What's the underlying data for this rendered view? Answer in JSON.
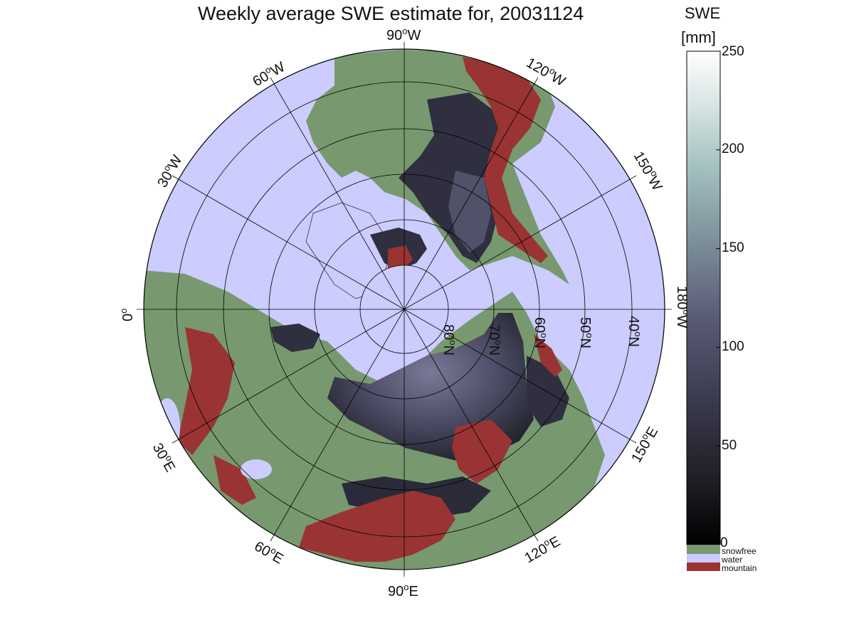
{
  "title": "Weekly average SWE estimate for, 20031124",
  "colorbar": {
    "title_line1": "SWE",
    "title_line2": "[mm]",
    "ticks": [
      "250",
      "200",
      "150",
      "100",
      "50",
      "0"
    ],
    "range": [
      0,
      250
    ]
  },
  "legend": [
    {
      "label": "snowfree",
      "color": "#78996f"
    },
    {
      "label": "water",
      "color": "#ccccff"
    },
    {
      "label": "mountain",
      "color": "#9a3333"
    }
  ],
  "longitude_labels": {
    "w90": "90",
    "w60": "60",
    "w120": "120",
    "w30": "30",
    "w150": "150",
    "zero": "0",
    "w180": "180",
    "e30": "30",
    "e150": "150",
    "e60": "60",
    "e120": "120",
    "e90": "90",
    "deg": "o",
    "W": "W",
    "E": "E"
  },
  "latitude_labels": {
    "n80": "80",
    "n70": "70",
    "n60": "60",
    "n50": "50",
    "n40": "40",
    "N": "N",
    "deg": "o"
  },
  "colors": {
    "ocean": "#ccccff",
    "land": "#78996f",
    "mountain": "#9a3333",
    "snow_dark": "#2a2a3c",
    "snow_mid": "#585874",
    "grid": "#000000"
  }
}
